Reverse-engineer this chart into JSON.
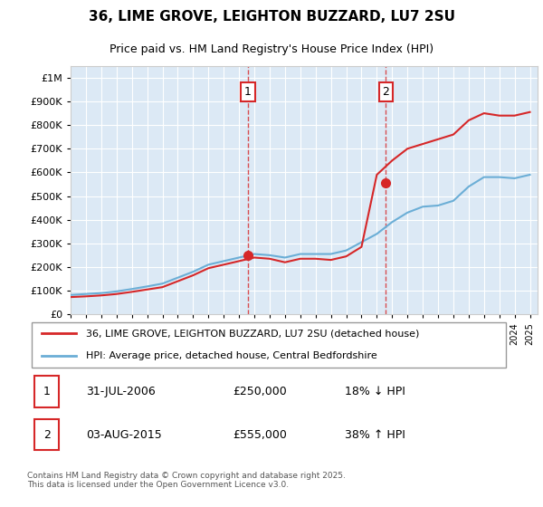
{
  "title": "36, LIME GROVE, LEIGHTON BUZZARD, LU7 2SU",
  "subtitle": "Price paid vs. HM Land Registry's House Price Index (HPI)",
  "legend_line1": "36, LIME GROVE, LEIGHTON BUZZARD, LU7 2SU (detached house)",
  "legend_line2": "HPI: Average price, detached house, Central Bedfordshire",
  "annotation1_label": "1",
  "annotation1_date": "31-JUL-2006",
  "annotation1_price": 250000,
  "annotation1_hpi": "18% ↓ HPI",
  "annotation1_year": 2006.58,
  "annotation2_label": "2",
  "annotation2_date": "03-AUG-2015",
  "annotation2_price": 555000,
  "annotation2_hpi": "38% ↑ HPI",
  "annotation2_year": 2015.59,
  "footer": "Contains HM Land Registry data © Crown copyright and database right 2025.\nThis data is licensed under the Open Government Licence v3.0.",
  "hpi_color": "#6baed6",
  "price_color": "#d62728",
  "background_color": "#dce9f5",
  "plot_bg": "#ffffff",
  "ylim": [
    0,
    1050000
  ],
  "xlim_start": 1995,
  "xlim_end": 2025.5,
  "hpi_years": [
    1995,
    1996,
    1997,
    1998,
    1999,
    2000,
    2001,
    2002,
    2003,
    2004,
    2005,
    2006,
    2007,
    2008,
    2009,
    2010,
    2011,
    2012,
    2013,
    2014,
    2015,
    2016,
    2017,
    2018,
    2019,
    2020,
    2021,
    2022,
    2023,
    2024,
    2025
  ],
  "hpi_values": [
    82000,
    86000,
    90000,
    97000,
    107000,
    118000,
    130000,
    155000,
    180000,
    210000,
    225000,
    240000,
    255000,
    250000,
    240000,
    255000,
    255000,
    255000,
    270000,
    305000,
    340000,
    390000,
    430000,
    455000,
    460000,
    480000,
    540000,
    580000,
    580000,
    575000,
    590000
  ],
  "red_years": [
    1995,
    1996,
    1997,
    1998,
    1999,
    2000,
    2001,
    2002,
    2003,
    2004,
    2005,
    2006,
    2007,
    2008,
    2009,
    2010,
    2011,
    2012,
    2013,
    2014,
    2015,
    2016,
    2017,
    2018,
    2019,
    2020,
    2021,
    2022,
    2023,
    2024,
    2025
  ],
  "red_values": [
    73000,
    76000,
    80000,
    86000,
    95000,
    105000,
    115000,
    140000,
    165000,
    195000,
    210000,
    225000,
    240000,
    235000,
    220000,
    235000,
    235000,
    230000,
    245000,
    285000,
    590000,
    650000,
    700000,
    720000,
    740000,
    760000,
    820000,
    850000,
    840000,
    840000,
    855000
  ]
}
